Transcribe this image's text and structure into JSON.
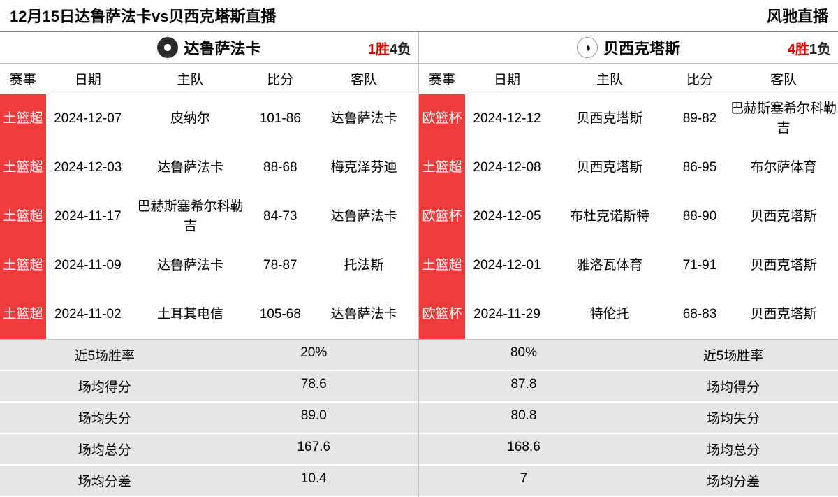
{
  "header": {
    "title": "12月15日达鲁萨法卡vs贝西克塔斯直播",
    "site": "风驰直播"
  },
  "columns": {
    "league": "赛事",
    "date": "日期",
    "home": "主队",
    "score": "比分",
    "away": "客队"
  },
  "stat_labels": {
    "winrate": "近5场胜率",
    "pts_for": "场均得分",
    "pts_against": "场均失分",
    "total": "场均总分",
    "diff": "场均分差"
  },
  "colors": {
    "league_bg": "#ef3b3b",
    "league_fg": "#ffffff",
    "record_red": "#d40000",
    "stat_bg": "#e6e6e6",
    "border": "#c0c0c0"
  },
  "teams": {
    "left": {
      "name": "达鲁萨法卡",
      "record_wins_label": "1胜",
      "record_losses_label": "4负",
      "games": [
        {
          "league": "土篮超",
          "date": "2024-12-07",
          "home": "皮纳尔",
          "score": "101-86",
          "away": "达鲁萨法卡"
        },
        {
          "league": "土篮超",
          "date": "2024-12-03",
          "home": "达鲁萨法卡",
          "score": "88-68",
          "away": "梅克泽芬迪"
        },
        {
          "league": "土篮超",
          "date": "2024-11-17",
          "home": "巴赫斯塞希尔科勒吉",
          "score": "84-73",
          "away": "达鲁萨法卡"
        },
        {
          "league": "土篮超",
          "date": "2024-11-09",
          "home": "达鲁萨法卡",
          "score": "78-87",
          "away": "托法斯"
        },
        {
          "league": "土篮超",
          "date": "2024-11-02",
          "home": "土耳其电信",
          "score": "105-68",
          "away": "达鲁萨法卡"
        }
      ],
      "stats": {
        "winrate": "20%",
        "pts_for": "78.6",
        "pts_against": "89.0",
        "total": "167.6",
        "diff": "10.4"
      }
    },
    "right": {
      "name": "贝西克塔斯",
      "record_wins_label": "4胜",
      "record_losses_label": "1负",
      "games": [
        {
          "league": "欧篮杯",
          "date": "2024-12-12",
          "home": "贝西克塔斯",
          "score": "89-82",
          "away": "巴赫斯塞希尔科勒吉"
        },
        {
          "league": "土篮超",
          "date": "2024-12-08",
          "home": "贝西克塔斯",
          "score": "86-95",
          "away": "布尔萨体育"
        },
        {
          "league": "欧篮杯",
          "date": "2024-12-05",
          "home": "布杜克诺斯特",
          "score": "88-90",
          "away": "贝西克塔斯"
        },
        {
          "league": "土篮超",
          "date": "2024-12-01",
          "home": "雅洛瓦体育",
          "score": "71-91",
          "away": "贝西克塔斯"
        },
        {
          "league": "欧篮杯",
          "date": "2024-11-29",
          "home": "特伦托",
          "score": "68-83",
          "away": "贝西克塔斯"
        }
      ],
      "stats": {
        "winrate": "80%",
        "pts_for": "87.8",
        "pts_against": "80.8",
        "total": "168.6",
        "diff": "7"
      }
    }
  }
}
